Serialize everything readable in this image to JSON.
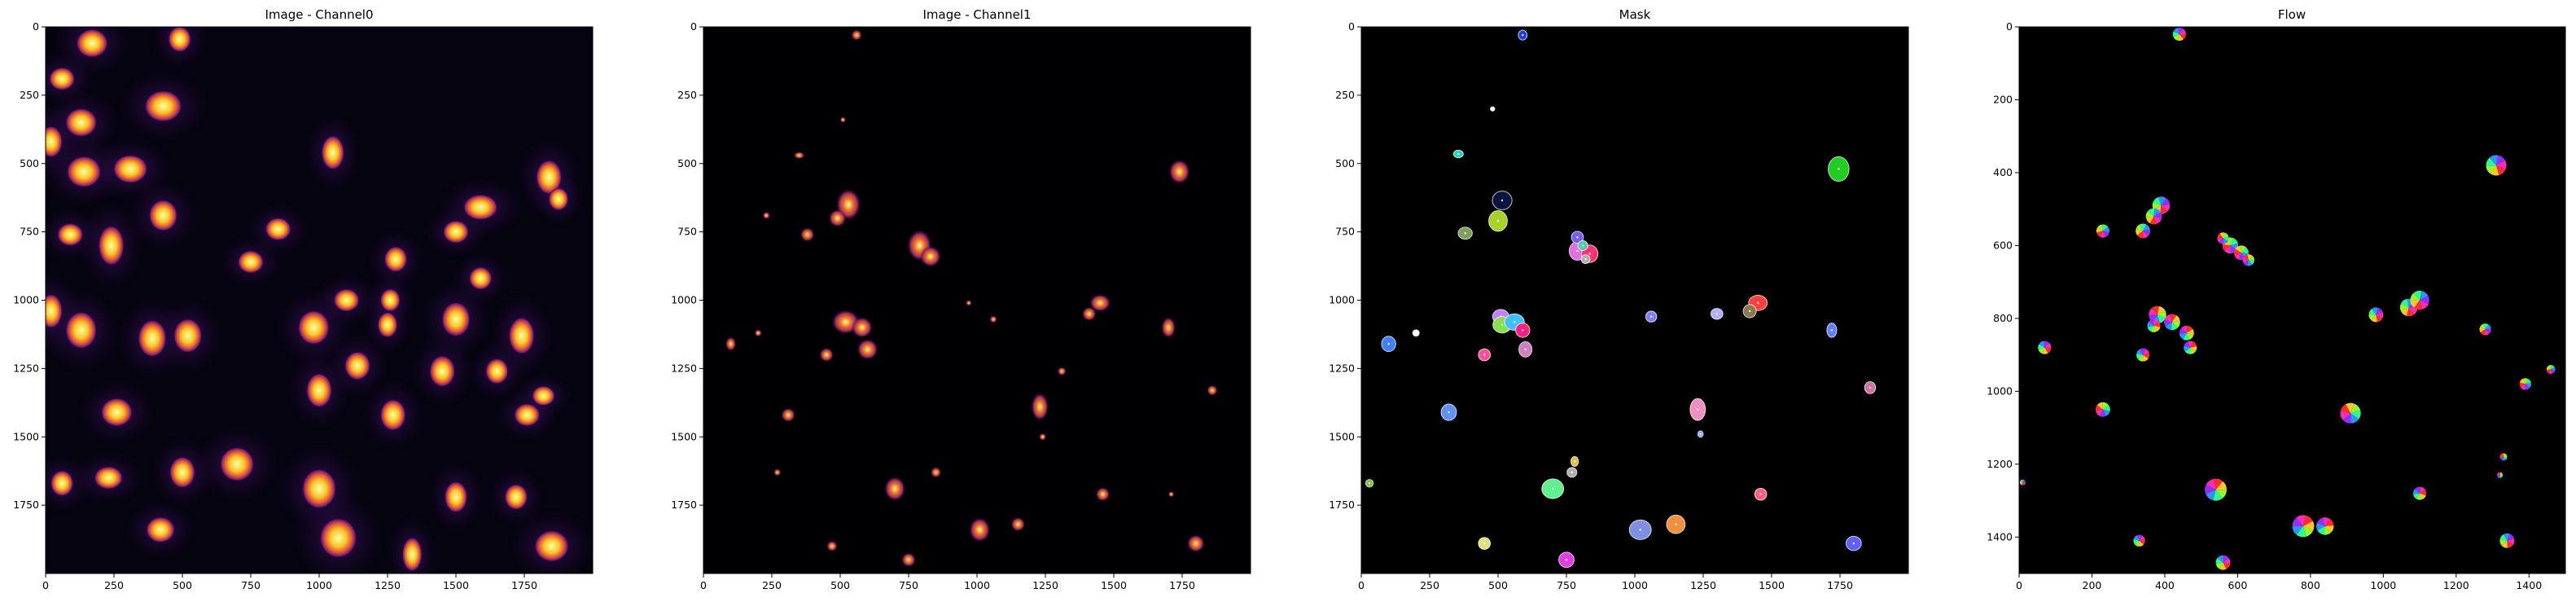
{
  "figure": {
    "panels": [
      {
        "title": "Image - Channel0",
        "colormap": "inferno",
        "xticks": [
          "0",
          "250",
          "500",
          "750",
          "1000",
          "1250",
          "1500",
          "1750"
        ],
        "yticks": [
          "0",
          "250",
          "500",
          "750",
          "1000",
          "1250",
          "1500",
          "1750"
        ]
      },
      {
        "title": "Image - Channel1",
        "colormap": "inferno",
        "xticks": [
          "0",
          "250",
          "500",
          "750",
          "1000",
          "1250",
          "1500",
          "1750"
        ],
        "yticks": [
          "0",
          "250",
          "500",
          "750",
          "1000",
          "1250",
          "1500",
          "1750"
        ]
      },
      {
        "title": "Mask",
        "colormap": "random-labels",
        "xticks": [
          "0",
          "250",
          "500",
          "750",
          "1000",
          "1250",
          "1500",
          "1750"
        ],
        "yticks": [
          "0",
          "250",
          "500",
          "750",
          "1000",
          "1250",
          "1500",
          "1750"
        ]
      },
      {
        "title": "Flow",
        "colormap": "hsv-flow",
        "xticks": [
          "0",
          "200",
          "400",
          "600",
          "800",
          "1000",
          "1200",
          "1400"
        ],
        "yticks": [
          "0",
          "200",
          "400",
          "600",
          "800",
          "1000",
          "1200",
          "1400"
        ]
      }
    ]
  },
  "chart_data": [
    {
      "type": "heatmap",
      "title": "Image - Channel0",
      "xlim": [
        0,
        2000
      ],
      "ylim": [
        2000,
        0
      ],
      "xticks": [
        0,
        250,
        500,
        750,
        1000,
        1250,
        1500,
        1750
      ],
      "yticks": [
        0,
        250,
        500,
        750,
        1000,
        1250,
        1500,
        1750
      ],
      "colors": {
        "background": "#05030f",
        "cytoplasm": "#2a0a45",
        "nucleus_low": "#b8326c",
        "nucleus_mid": "#f2a35a",
        "nucleus_high": "#fcffa4"
      },
      "nuclei": [
        [
          170,
          60,
          55,
          50
        ],
        [
          490,
          45,
          40,
          45
        ],
        [
          60,
          190,
          45,
          40
        ],
        [
          430,
          290,
          65,
          55
        ],
        [
          130,
          350,
          55,
          50
        ],
        [
          20,
          420,
          40,
          55
        ],
        [
          1050,
          460,
          40,
          60
        ],
        [
          140,
          530,
          60,
          55
        ],
        [
          310,
          520,
          60,
          50
        ],
        [
          1840,
          550,
          45,
          60
        ],
        [
          1875,
          630,
          35,
          40
        ],
        [
          430,
          690,
          50,
          55
        ],
        [
          1590,
          660,
          60,
          45
        ],
        [
          90,
          760,
          45,
          40
        ],
        [
          850,
          740,
          45,
          40
        ],
        [
          240,
          800,
          45,
          70
        ],
        [
          750,
          860,
          45,
          40
        ],
        [
          1280,
          850,
          40,
          45
        ],
        [
          1500,
          750,
          45,
          40
        ],
        [
          1590,
          920,
          40,
          40
        ],
        [
          20,
          1040,
          40,
          60
        ],
        [
          130,
          1110,
          55,
          65
        ],
        [
          390,
          1140,
          50,
          65
        ],
        [
          520,
          1130,
          50,
          60
        ],
        [
          980,
          1100,
          55,
          60
        ],
        [
          1100,
          1000,
          45,
          40
        ],
        [
          1250,
          1090,
          35,
          45
        ],
        [
          1260,
          1000,
          35,
          40
        ],
        [
          1500,
          1070,
          50,
          60
        ],
        [
          1740,
          1130,
          45,
          65
        ],
        [
          1140,
          1240,
          45,
          50
        ],
        [
          1450,
          1260,
          45,
          55
        ],
        [
          1650,
          1260,
          40,
          45
        ],
        [
          1000,
          1330,
          45,
          60
        ],
        [
          260,
          1410,
          55,
          50
        ],
        [
          1820,
          1350,
          40,
          35
        ],
        [
          1270,
          1420,
          45,
          55
        ],
        [
          1760,
          1420,
          45,
          40
        ],
        [
          60,
          1670,
          40,
          45
        ],
        [
          230,
          1650,
          50,
          40
        ],
        [
          500,
          1630,
          45,
          55
        ],
        [
          700,
          1600,
          60,
          60
        ],
        [
          1000,
          1690,
          60,
          70
        ],
        [
          1500,
          1720,
          40,
          55
        ],
        [
          1720,
          1720,
          40,
          45
        ],
        [
          420,
          1840,
          50,
          45
        ],
        [
          1070,
          1870,
          65,
          70
        ],
        [
          1340,
          1930,
          35,
          60
        ],
        [
          1850,
          1900,
          60,
          55
        ]
      ]
    },
    {
      "type": "heatmap",
      "title": "Image - Channel1",
      "xlim": [
        0,
        2000
      ],
      "ylim": [
        2000,
        0
      ],
      "xticks": [
        0,
        250,
        500,
        750,
        1000,
        1250,
        1500,
        1750
      ],
      "yticks": [
        0,
        250,
        500,
        750,
        1000,
        1250,
        1500,
        1750
      ],
      "colors": {
        "background": "#000004",
        "low": "#56106e",
        "mid": "#e35933",
        "high": "#fcffa4"
      },
      "spots": [
        [
          560,
          30,
          15,
          15
        ],
        [
          510,
          340,
          8,
          8
        ],
        [
          350,
          470,
          15,
          10
        ],
        [
          1740,
          530,
          30,
          35
        ],
        [
          230,
          690,
          10,
          10
        ],
        [
          530,
          650,
          35,
          45
        ],
        [
          490,
          700,
          25,
          25
        ],
        [
          380,
          760,
          20,
          20
        ],
        [
          790,
          800,
          35,
          45
        ],
        [
          830,
          840,
          30,
          30
        ],
        [
          970,
          1010,
          8,
          8
        ],
        [
          1450,
          1010,
          30,
          25
        ],
        [
          1410,
          1050,
          20,
          20
        ],
        [
          1060,
          1070,
          10,
          10
        ],
        [
          520,
          1080,
          40,
          35
        ],
        [
          580,
          1100,
          30,
          30
        ],
        [
          600,
          1180,
          30,
          30
        ],
        [
          450,
          1200,
          20,
          20
        ],
        [
          100,
          1160,
          15,
          20
        ],
        [
          200,
          1120,
          10,
          10
        ],
        [
          1310,
          1260,
          12,
          12
        ],
        [
          1700,
          1100,
          20,
          30
        ],
        [
          1860,
          1330,
          15,
          15
        ],
        [
          310,
          1420,
          20,
          20
        ],
        [
          1230,
          1390,
          25,
          40
        ],
        [
          1240,
          1500,
          10,
          10
        ],
        [
          700,
          1690,
          30,
          35
        ],
        [
          850,
          1630,
          15,
          15
        ],
        [
          1460,
          1710,
          20,
          20
        ],
        [
          1710,
          1710,
          8,
          8
        ],
        [
          1010,
          1840,
          30,
          35
        ],
        [
          1150,
          1820,
          20,
          20
        ],
        [
          470,
          1900,
          15,
          15
        ],
        [
          750,
          1950,
          20,
          20
        ],
        [
          1800,
          1890,
          25,
          25
        ],
        [
          270,
          1630,
          10,
          10
        ]
      ]
    },
    {
      "type": "heatmap",
      "title": "Mask",
      "xlim": [
        0,
        2000
      ],
      "ylim": [
        2000,
        0
      ],
      "xticks": [
        0,
        250,
        500,
        750,
        1000,
        1250,
        1500,
        1750
      ],
      "yticks": [
        0,
        250,
        500,
        750,
        1000,
        1250,
        1500,
        1750
      ],
      "colors": {
        "background": "#000000",
        "outline": "#ffffff"
      },
      "labels": [
        [
          590,
          30,
          16,
          18,
          "#1f3fe0"
        ],
        [
          1745,
          520,
          38,
          45,
          "#22cc22"
        ],
        [
          355,
          465,
          18,
          14,
          "#22d3c0"
        ],
        [
          515,
          635,
          36,
          34,
          "#0a1440"
        ],
        [
          500,
          710,
          34,
          38,
          "#a6d22a"
        ],
        [
          380,
          755,
          26,
          22,
          "#7aa060"
        ],
        [
          790,
          820,
          30,
          34,
          "#e070e0"
        ],
        [
          835,
          830,
          30,
          32,
          "#ff3377"
        ],
        [
          790,
          770,
          22,
          22,
          "#7a5cf2"
        ],
        [
          810,
          800,
          18,
          18,
          "#5ac8a8"
        ],
        [
          820,
          850,
          16,
          16,
          "#b0b0b0"
        ],
        [
          1450,
          1010,
          34,
          28,
          "#ff4040"
        ],
        [
          1420,
          1040,
          24,
          24,
          "#8a7a50"
        ],
        [
          1060,
          1060,
          20,
          20,
          "#8080ff"
        ],
        [
          510,
          1060,
          30,
          26,
          "#c080ff"
        ],
        [
          515,
          1090,
          34,
          30,
          "#88e050"
        ],
        [
          560,
          1080,
          36,
          30,
          "#40c0ff"
        ],
        [
          590,
          1110,
          26,
          26,
          "#ff2080"
        ],
        [
          600,
          1180,
          24,
          28,
          "#d080c0"
        ],
        [
          450,
          1200,
          22,
          22,
          "#ff50a0"
        ],
        [
          100,
          1160,
          26,
          28,
          "#4080ff"
        ],
        [
          200,
          1120,
          12,
          12,
          "#ffffff"
        ],
        [
          1720,
          1110,
          18,
          26,
          "#6080ff"
        ],
        [
          1860,
          1320,
          20,
          22,
          "#d070a0"
        ],
        [
          320,
          1410,
          28,
          30,
          "#6090ff"
        ],
        [
          1230,
          1400,
          28,
          40,
          "#f090c0"
        ],
        [
          1240,
          1490,
          10,
          12,
          "#80a0ff"
        ],
        [
          1300,
          1050,
          22,
          20,
          "#b0b0ff"
        ],
        [
          700,
          1690,
          40,
          36,
          "#60f090"
        ],
        [
          770,
          1630,
          18,
          18,
          "#b0b0b0"
        ],
        [
          780,
          1590,
          14,
          18,
          "#e0c040"
        ],
        [
          1460,
          1710,
          22,
          22,
          "#ff6080"
        ],
        [
          1020,
          1840,
          40,
          36,
          "#8090e0"
        ],
        [
          1150,
          1820,
          34,
          34,
          "#f09040"
        ],
        [
          450,
          1890,
          22,
          22,
          "#e0e080"
        ],
        [
          750,
          1950,
          28,
          28,
          "#e040e0"
        ],
        [
          1800,
          1890,
          28,
          26,
          "#6060ff"
        ],
        [
          30,
          1670,
          14,
          14,
          "#80c040"
        ],
        [
          480,
          300,
          8,
          8,
          "#ffffff"
        ]
      ]
    },
    {
      "type": "heatmap",
      "title": "Flow",
      "xlim": [
        0,
        1500
      ],
      "ylim": [
        1500,
        0
      ],
      "xticks": [
        0,
        200,
        400,
        600,
        800,
        1000,
        1200,
        1400
      ],
      "yticks": [
        0,
        200,
        400,
        600,
        800,
        1000,
        1200,
        1400
      ],
      "colors": {
        "background": "#000000"
      },
      "flows": [
        [
          440,
          20,
          18
        ],
        [
          1310,
          380,
          28
        ],
        [
          390,
          490,
          24
        ],
        [
          370,
          520,
          22
        ],
        [
          340,
          560,
          20
        ],
        [
          230,
          560,
          18
        ],
        [
          580,
          600,
          22
        ],
        [
          610,
          620,
          20
        ],
        [
          560,
          580,
          16
        ],
        [
          630,
          640,
          16
        ],
        [
          380,
          790,
          24
        ],
        [
          420,
          810,
          22
        ],
        [
          460,
          840,
          20
        ],
        [
          470,
          880,
          18
        ],
        [
          370,
          820,
          18
        ],
        [
          340,
          900,
          18
        ],
        [
          70,
          880,
          18
        ],
        [
          980,
          790,
          20
        ],
        [
          1070,
          770,
          24
        ],
        [
          1100,
          750,
          26
        ],
        [
          1280,
          830,
          16
        ],
        [
          1460,
          940,
          12
        ],
        [
          1390,
          980,
          16
        ],
        [
          230,
          1050,
          20
        ],
        [
          910,
          1060,
          28
        ],
        [
          1330,
          1180,
          10
        ],
        [
          1320,
          1230,
          8
        ],
        [
          540,
          1270,
          30
        ],
        [
          780,
          1370,
          30
        ],
        [
          840,
          1370,
          24
        ],
        [
          1100,
          1280,
          18
        ],
        [
          330,
          1410,
          16
        ],
        [
          560,
          1470,
          20
        ],
        [
          1340,
          1410,
          20
        ],
        [
          10,
          1250,
          8
        ]
      ]
    }
  ]
}
